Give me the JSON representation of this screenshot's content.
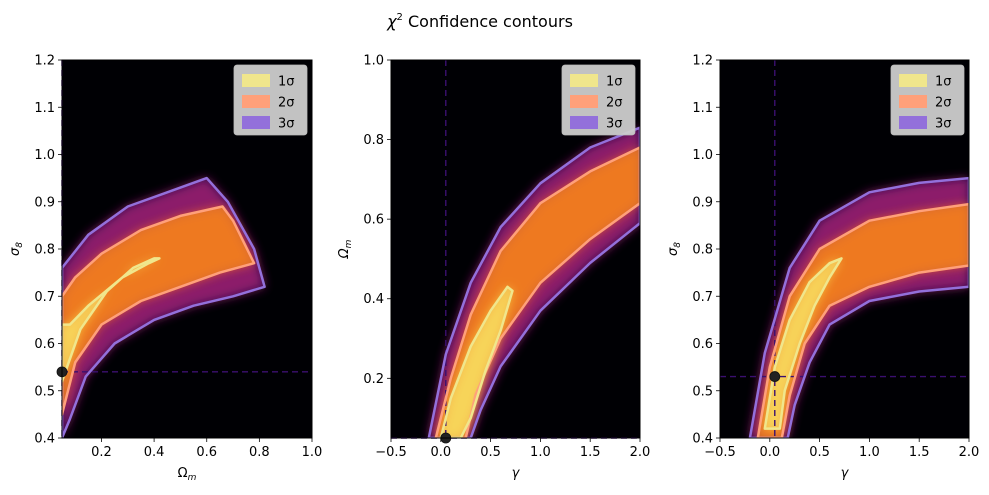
{
  "chart_data": [
    {
      "type": "contour",
      "suptitle_main": "χ",
      "suptitle_sup": "2",
      "suptitle_rest": " Confidence contours",
      "xlabel": "Ω",
      "xlabel_sub": "m",
      "ylabel": "σ",
      "ylabel_sub": "8",
      "xlim": [
        0.05,
        1.0
      ],
      "ylim": [
        0.4,
        1.2
      ],
      "xticks": [
        "0.2",
        "0.4",
        "0.6",
        "0.8",
        "1.0"
      ],
      "xtick_values": [
        0.2,
        0.4,
        0.6,
        0.8,
        1.0
      ],
      "yticks": [
        "0.4",
        "0.5",
        "0.6",
        "0.7",
        "0.8",
        "0.9",
        "1.0",
        "1.1",
        "1.2"
      ],
      "ytick_values": [
        0.4,
        0.5,
        0.6,
        0.7,
        0.8,
        0.9,
        1.0,
        1.1,
        1.2
      ],
      "best_fit": {
        "x": 0.05,
        "y": 0.54
      },
      "legend": [
        "1σ",
        "2σ",
        "3σ"
      ],
      "legend_position": "upper-right",
      "levels": {
        "sigma1": [
          [
            0.05,
            0.52
          ],
          [
            0.12,
            0.63
          ],
          [
            0.22,
            0.71
          ],
          [
            0.32,
            0.76
          ],
          [
            0.4,
            0.78
          ],
          [
            0.42,
            0.78
          ],
          [
            0.38,
            0.77
          ],
          [
            0.28,
            0.74
          ],
          [
            0.15,
            0.68
          ],
          [
            0.08,
            0.64
          ],
          [
            0.05,
            0.64
          ]
        ],
        "sigma2": [
          [
            0.05,
            0.45
          ],
          [
            0.1,
            0.56
          ],
          [
            0.2,
            0.64
          ],
          [
            0.35,
            0.69
          ],
          [
            0.5,
            0.72
          ],
          [
            0.65,
            0.75
          ],
          [
            0.78,
            0.77
          ],
          [
            0.7,
            0.86
          ],
          [
            0.66,
            0.89
          ],
          [
            0.5,
            0.87
          ],
          [
            0.35,
            0.84
          ],
          [
            0.2,
            0.79
          ],
          [
            0.1,
            0.74
          ],
          [
            0.05,
            0.7
          ]
        ],
        "sigma3": [
          [
            0.05,
            0.4
          ],
          [
            0.08,
            0.44
          ],
          [
            0.14,
            0.53
          ],
          [
            0.25,
            0.6
          ],
          [
            0.4,
            0.65
          ],
          [
            0.55,
            0.68
          ],
          [
            0.7,
            0.7
          ],
          [
            0.82,
            0.72
          ],
          [
            0.78,
            0.8
          ],
          [
            0.68,
            0.9
          ],
          [
            0.6,
            0.95
          ],
          [
            0.45,
            0.92
          ],
          [
            0.3,
            0.89
          ],
          [
            0.15,
            0.83
          ],
          [
            0.05,
            0.76
          ]
        ]
      }
    },
    {
      "type": "contour",
      "xlabel": "γ",
      "ylabel": "Ω",
      "ylabel_sub": "m",
      "xlim": [
        -0.5,
        2.0
      ],
      "ylim": [
        0.05,
        1.0
      ],
      "xticks": [
        "−0.5",
        "0.0",
        "0.5",
        "1.0",
        "1.5",
        "2.0"
      ],
      "xtick_values": [
        -0.5,
        0.0,
        0.5,
        1.0,
        1.5,
        2.0
      ],
      "yticks": [
        "0.2",
        "0.4",
        "0.6",
        "0.8",
        "1.0"
      ],
      "ytick_values": [
        0.2,
        0.4,
        0.6,
        0.8,
        1.0
      ],
      "best_fit": {
        "x": 0.05,
        "y": 0.05
      },
      "legend": [
        "1σ",
        "2σ",
        "3σ"
      ],
      "legend_position": "upper-right",
      "levels": {
        "sigma1": [
          [
            0.0,
            0.05
          ],
          [
            0.1,
            0.15
          ],
          [
            0.3,
            0.28
          ],
          [
            0.5,
            0.37
          ],
          [
            0.67,
            0.43
          ],
          [
            0.72,
            0.42
          ],
          [
            0.6,
            0.32
          ],
          [
            0.45,
            0.22
          ],
          [
            0.3,
            0.1
          ],
          [
            0.2,
            0.05
          ]
        ],
        "sigma2": [
          [
            -0.05,
            0.05
          ],
          [
            0.1,
            0.2
          ],
          [
            0.3,
            0.36
          ],
          [
            0.6,
            0.52
          ],
          [
            1.0,
            0.64
          ],
          [
            1.5,
            0.72
          ],
          [
            2.0,
            0.78
          ],
          [
            2.0,
            0.64
          ],
          [
            1.5,
            0.55
          ],
          [
            1.0,
            0.44
          ],
          [
            0.6,
            0.3
          ],
          [
            0.35,
            0.16
          ],
          [
            0.25,
            0.05
          ]
        ],
        "sigma3": [
          [
            -0.12,
            0.05
          ],
          [
            0.05,
            0.26
          ],
          [
            0.3,
            0.44
          ],
          [
            0.6,
            0.58
          ],
          [
            1.0,
            0.69
          ],
          [
            1.5,
            0.78
          ],
          [
            2.0,
            0.83
          ],
          [
            2.0,
            0.59
          ],
          [
            1.5,
            0.49
          ],
          [
            1.0,
            0.37
          ],
          [
            0.6,
            0.23
          ],
          [
            0.4,
            0.12
          ],
          [
            0.3,
            0.05
          ]
        ]
      }
    },
    {
      "type": "contour",
      "xlabel": "γ",
      "ylabel": "σ",
      "ylabel_sub": "8",
      "xlim": [
        -0.5,
        2.0
      ],
      "ylim": [
        0.4,
        1.2
      ],
      "xticks": [
        "−0.5",
        "0.0",
        "0.5",
        "1.0",
        "1.5",
        "2.0"
      ],
      "xtick_values": [
        -0.5,
        0.0,
        0.5,
        1.0,
        1.5,
        2.0
      ],
      "yticks": [
        "0.4",
        "0.5",
        "0.6",
        "0.7",
        "0.8",
        "0.9",
        "1.0",
        "1.1",
        "1.2"
      ],
      "ytick_values": [
        0.4,
        0.5,
        0.6,
        0.7,
        0.8,
        0.9,
        1.0,
        1.1,
        1.2
      ],
      "best_fit": {
        "x": 0.05,
        "y": 0.53
      },
      "legend": [
        "1σ",
        "2σ",
        "3σ"
      ],
      "legend_position": "upper-right",
      "levels": {
        "sigma1": [
          [
            -0.05,
            0.42
          ],
          [
            0.05,
            0.55
          ],
          [
            0.2,
            0.65
          ],
          [
            0.4,
            0.73
          ],
          [
            0.6,
            0.77
          ],
          [
            0.72,
            0.78
          ],
          [
            0.6,
            0.74
          ],
          [
            0.45,
            0.68
          ],
          [
            0.3,
            0.6
          ],
          [
            0.15,
            0.5
          ],
          [
            0.1,
            0.42
          ]
        ],
        "sigma2": [
          [
            -0.12,
            0.4
          ],
          [
            0.0,
            0.55
          ],
          [
            0.2,
            0.7
          ],
          [
            0.5,
            0.8
          ],
          [
            1.0,
            0.86
          ],
          [
            1.5,
            0.88
          ],
          [
            2.0,
            0.895
          ],
          [
            2.0,
            0.765
          ],
          [
            1.5,
            0.75
          ],
          [
            1.0,
            0.72
          ],
          [
            0.6,
            0.68
          ],
          [
            0.35,
            0.6
          ],
          [
            0.2,
            0.49
          ],
          [
            0.12,
            0.4
          ]
        ],
        "sigma3": [
          [
            -0.2,
            0.4
          ],
          [
            -0.05,
            0.58
          ],
          [
            0.2,
            0.76
          ],
          [
            0.5,
            0.86
          ],
          [
            1.0,
            0.92
          ],
          [
            1.5,
            0.94
          ],
          [
            2.0,
            0.95
          ],
          [
            2.0,
            0.72
          ],
          [
            1.5,
            0.71
          ],
          [
            1.0,
            0.69
          ],
          [
            0.6,
            0.64
          ],
          [
            0.4,
            0.56
          ],
          [
            0.25,
            0.47
          ],
          [
            0.18,
            0.4
          ]
        ]
      }
    }
  ],
  "colors": {
    "sigma1": "#f0e68c",
    "sigma2": "#ffa07a",
    "sigma3": "#9370db",
    "background": "#000004",
    "guide": "#3b0f70",
    "best_fit_marker": "#222222"
  }
}
